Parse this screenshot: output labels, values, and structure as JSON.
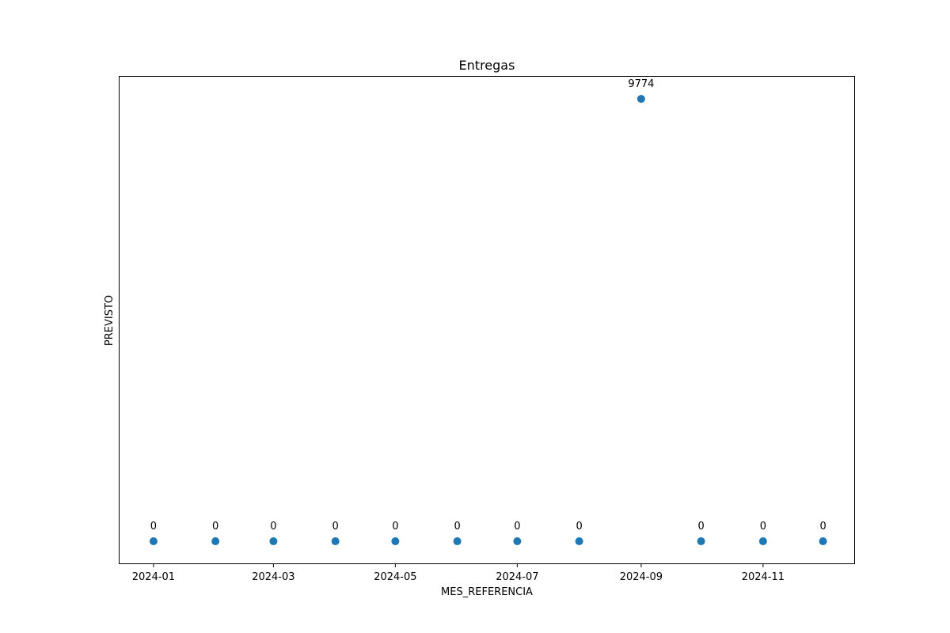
{
  "chart_data": {
    "type": "scatter",
    "title": "Entregas",
    "xlabel": "MES_REFERENCIA",
    "ylabel": "PREVISTO",
    "x_tick_labels": [
      "2024-01",
      "2024-03",
      "2024-05",
      "2024-07",
      "2024-09",
      "2024-11"
    ],
    "x_tick_dates": [
      "2024-01-01",
      "2024-03-01",
      "2024-05-01",
      "2024-07-01",
      "2024-09-01",
      "2024-11-01"
    ],
    "x_axis_range": [
      "2023-12-15",
      "2024-12-17"
    ],
    "y_ticks_shown": false,
    "grid": false,
    "legend": "none",
    "marker_color": "#1f77b4",
    "series": [
      {
        "x": [
          "2024-01-01",
          "2024-02-01",
          "2024-03-01",
          "2024-04-01",
          "2024-05-01",
          "2024-06-01",
          "2024-07-01",
          "2024-08-01",
          "2024-09-01",
          "2024-10-01",
          "2024-11-01",
          "2024-12-01"
        ],
        "y": [
          0,
          0,
          0,
          0,
          0,
          0,
          0,
          0,
          9774,
          0,
          0,
          0
        ],
        "labels": [
          "0",
          "0",
          "0",
          "0",
          "0",
          "0",
          "0",
          "0",
          "9774",
          "0",
          "0",
          "0"
        ]
      }
    ]
  }
}
